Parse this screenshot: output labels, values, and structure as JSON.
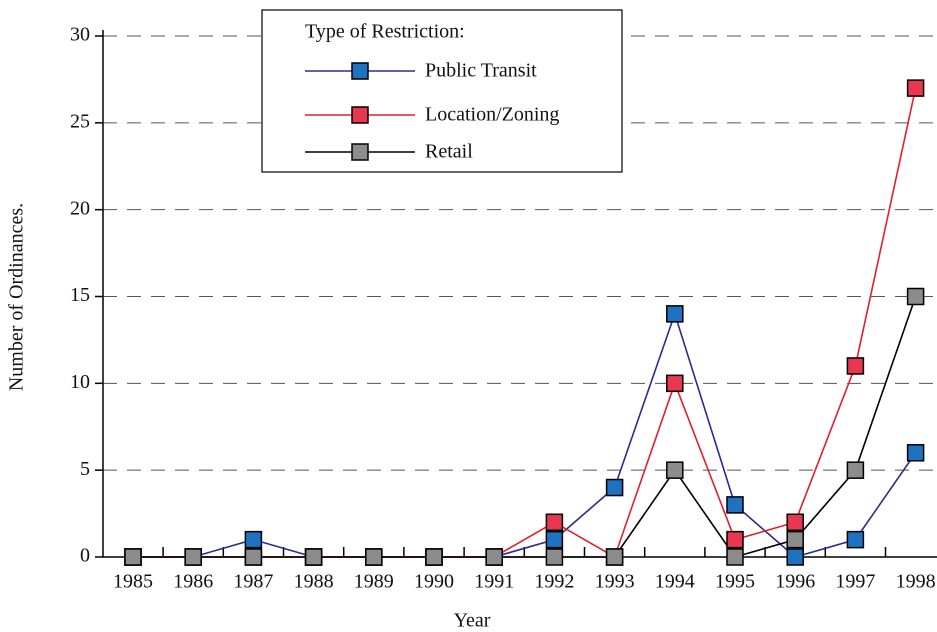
{
  "chart_data": {
    "type": "line",
    "y_label": "Number of Ordinances.",
    "x_label": "Year",
    "legend_title": "Type of Restriction:",
    "categories": [
      "1985",
      "1986",
      "1987",
      "1988",
      "1989",
      "1990",
      "1991",
      "1992",
      "1993",
      "1994",
      "1995",
      "1996",
      "1997",
      "1998"
    ],
    "series": [
      {
        "name": "Public Transit",
        "color": "#2b2b8f",
        "marker_color": "#1f72c2",
        "values": [
          0,
          0,
          1,
          0,
          0,
          0,
          0,
          1,
          4,
          14,
          3,
          0,
          1,
          6
        ]
      },
      {
        "name": "Location/Zoning",
        "color": "#e0202e",
        "marker_color": "#e8384f",
        "values": [
          0,
          0,
          0,
          0,
          0,
          0,
          0,
          2,
          0,
          10,
          1,
          2,
          11,
          27
        ]
      },
      {
        "name": "Retail",
        "color": "#000000",
        "marker_color": "#8c8c8c",
        "values": [
          0,
          0,
          0,
          0,
          0,
          0,
          0,
          0,
          0,
          5,
          0,
          1,
          5,
          15
        ]
      }
    ],
    "ylim": [
      0,
      30
    ],
    "yticks": [
      0,
      5,
      10,
      15,
      20,
      25,
      30
    ],
    "grid": true,
    "legend": "top"
  }
}
